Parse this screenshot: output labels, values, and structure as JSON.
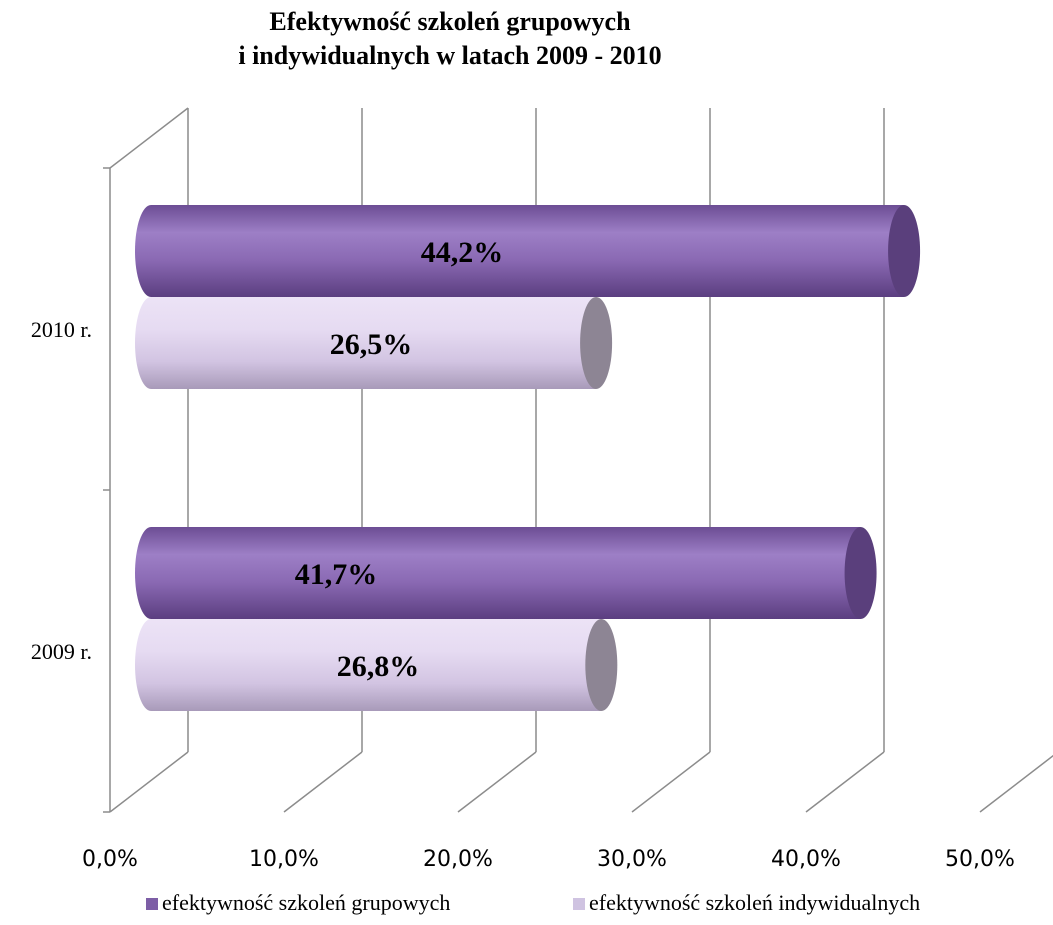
{
  "chart_data": {
    "type": "bar",
    "orientation": "horizontal",
    "title": [
      "Efektywność szkoleń grupowych",
      "i indywidualnych w latach 2009 - 2010"
    ],
    "categories": [
      "2010 r.",
      "2009 r."
    ],
    "series": [
      {
        "name": "efektywność szkoleń grupowych",
        "values": [
          44.2,
          41.7
        ],
        "labels": [
          "44,2%",
          "41,7%"
        ],
        "color": "#8b6ab4"
      },
      {
        "name": "efektywność szkoleń indywidualnych",
        "values": [
          26.5,
          26.8
        ],
        "labels": [
          "26,5%",
          "26,8%"
        ],
        "color": "#ddd0ec"
      }
    ],
    "xlim": [
      0,
      50
    ],
    "xticks": [
      "0,0%",
      "10,0%",
      "20,0%",
      "30,0%",
      "40,0%",
      "50,0%"
    ],
    "grid": true,
    "legend_position": "bottom"
  }
}
